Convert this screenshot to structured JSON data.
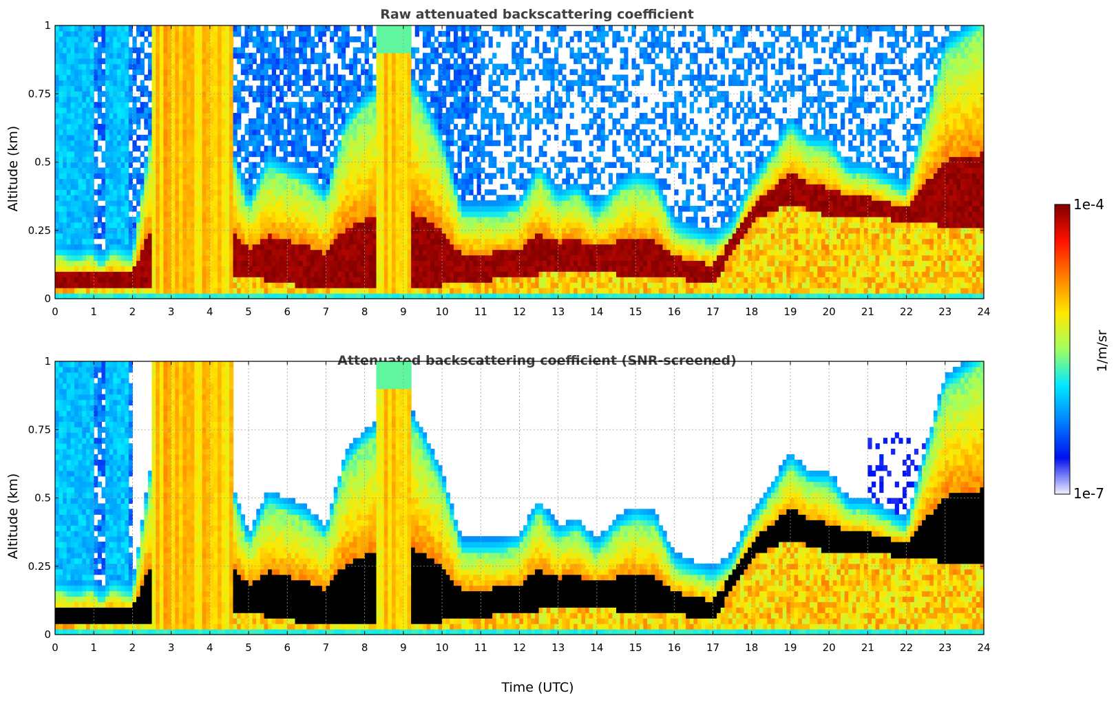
{
  "chart_data": [
    {
      "type": "heatmap",
      "title": "Raw attenuated backscattering coefficient",
      "xlabel": "",
      "ylabel": "Altitude (km)",
      "xlim": [
        0,
        24
      ],
      "ylim": [
        0,
        1
      ],
      "x_ticks": [
        "0",
        "1",
        "2",
        "3",
        "4",
        "5",
        "6",
        "7",
        "8",
        "9",
        "10",
        "11",
        "12",
        "13",
        "14",
        "15",
        "16",
        "17",
        "18",
        "19",
        "20",
        "21",
        "22",
        "23",
        "24"
      ],
      "y_ticks": [
        "0",
        "0.25",
        "0.5",
        "0.75",
        "1"
      ],
      "grid": true,
      "screened": false,
      "layer_top_km": [
        [
          0,
          0.16
        ],
        [
          0.3,
          0.15
        ],
        [
          0.6,
          0.14
        ],
        [
          0.9,
          0.16
        ],
        [
          1.2,
          0.12
        ],
        [
          1.5,
          0.17
        ],
        [
          1.8,
          0.15
        ],
        [
          2.0,
          0.14
        ],
        [
          2.5,
          0.6
        ],
        [
          4.6,
          0.5
        ],
        [
          5.0,
          0.32
        ],
        [
          5.5,
          0.48
        ],
        [
          6.0,
          0.45
        ],
        [
          6.5,
          0.42
        ],
        [
          7.0,
          0.35
        ],
        [
          7.5,
          0.62
        ],
        [
          8.0,
          0.7
        ],
        [
          8.5,
          0.75
        ],
        [
          9.0,
          0.82
        ],
        [
          9.5,
          0.7
        ],
        [
          10.0,
          0.55
        ],
        [
          10.5,
          0.3
        ],
        [
          11.0,
          0.3
        ],
        [
          11.5,
          0.3
        ],
        [
          12.0,
          0.32
        ],
        [
          12.5,
          0.45
        ],
        [
          13.0,
          0.35
        ],
        [
          13.5,
          0.38
        ],
        [
          14.0,
          0.3
        ],
        [
          14.5,
          0.38
        ],
        [
          15.0,
          0.42
        ],
        [
          15.5,
          0.4
        ],
        [
          16.0,
          0.25
        ],
        [
          16.5,
          0.22
        ],
        [
          17.0,
          0.2
        ],
        [
          17.5,
          0.25
        ],
        [
          18.0,
          0.4
        ],
        [
          18.5,
          0.5
        ],
        [
          19.0,
          0.62
        ],
        [
          19.5,
          0.55
        ],
        [
          20.0,
          0.55
        ],
        [
          20.5,
          0.45
        ],
        [
          21.0,
          0.45
        ],
        [
          22.0,
          0.38
        ],
        [
          23.0,
          0.9
        ],
        [
          24.0,
          1.0
        ]
      ],
      "layer_base_km": [
        [
          0,
          0.04
        ],
        [
          2.0,
          0.04
        ],
        [
          5.0,
          0.08
        ],
        [
          7.0,
          0.03
        ],
        [
          8.0,
          0.04
        ],
        [
          10.0,
          0.05
        ],
        [
          12.0,
          0.08
        ],
        [
          13.0,
          0.1
        ],
        [
          14.0,
          0.1
        ],
        [
          15.0,
          0.08
        ],
        [
          16.0,
          0.08
        ],
        [
          17.0,
          0.05
        ],
        [
          18.0,
          0.28
        ],
        [
          19.0,
          0.35
        ],
        [
          20.0,
          0.3
        ],
        [
          21.0,
          0.3
        ],
        [
          24.0,
          0.25
        ]
      ]
    },
    {
      "type": "heatmap",
      "title": "Attenuated backscattering coefficient (SNR-screened)",
      "xlabel": "Time (UTC)",
      "ylabel": "Altitude (km)",
      "xlim": [
        0,
        24
      ],
      "ylim": [
        0,
        1
      ],
      "x_ticks": [
        "0",
        "1",
        "2",
        "3",
        "4",
        "5",
        "6",
        "7",
        "8",
        "9",
        "10",
        "11",
        "12",
        "13",
        "14",
        "15",
        "16",
        "17",
        "18",
        "19",
        "20",
        "21",
        "22",
        "23",
        "24"
      ],
      "y_ticks": [
        "0",
        "0.25",
        "0.5",
        "0.75",
        "1"
      ],
      "grid": true,
      "screened": true
    }
  ],
  "colorbar": {
    "label": "1/m/sr",
    "max_label": "1e-4",
    "min_label": "1e-7",
    "scale": "log",
    "colors": [
      "#f2f0ff",
      "#0010f0",
      "#0080ff",
      "#00e8ff",
      "#a0ff60",
      "#ffe800",
      "#ff8000",
      "#ff1000",
      "#800000"
    ]
  }
}
